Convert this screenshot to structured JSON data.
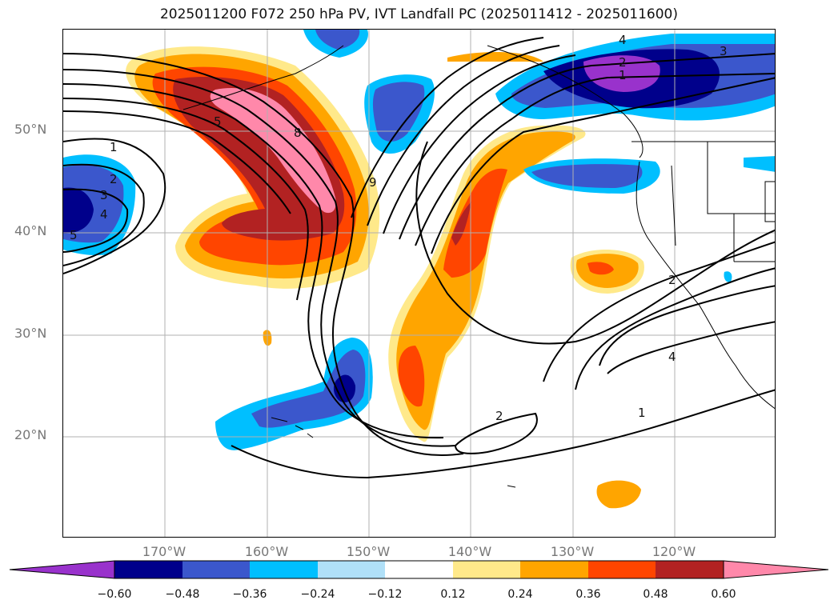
{
  "title": "2025011200 F072 250 hPa PV, IVT Landfall PC (2025011412 - 2025011600)",
  "map": {
    "projection": "equirectangular",
    "lon_range": [
      -180,
      -110
    ],
    "lat_range": [
      10,
      60
    ],
    "lat_labels": [
      "50°N",
      "40°N",
      "30°N",
      "20°N"
    ],
    "lon_labels": [
      "170°W",
      "160°W",
      "150°W",
      "140°W",
      "130°W",
      "120°W"
    ],
    "contour_labels": [
      "1",
      "2",
      "3",
      "4",
      "5",
      "1",
      "2",
      "3",
      "4",
      "5",
      "8",
      "9",
      "2",
      "2",
      "1",
      "4"
    ]
  },
  "colorbar": {
    "tick_labels": [
      "−0.60",
      "−0.48",
      "−0.36",
      "−0.24",
      "−0.12",
      "0.12",
      "0.24",
      "0.36",
      "0.48",
      "0.60"
    ],
    "colors": [
      "#9932cc",
      "#00008b",
      "#3b57cc",
      "#00bfff",
      "#b0e0f8",
      "#ffffff",
      "#ffe98a",
      "#ffa500",
      "#ff4500",
      "#b22222",
      "#ff88aa"
    ]
  }
}
